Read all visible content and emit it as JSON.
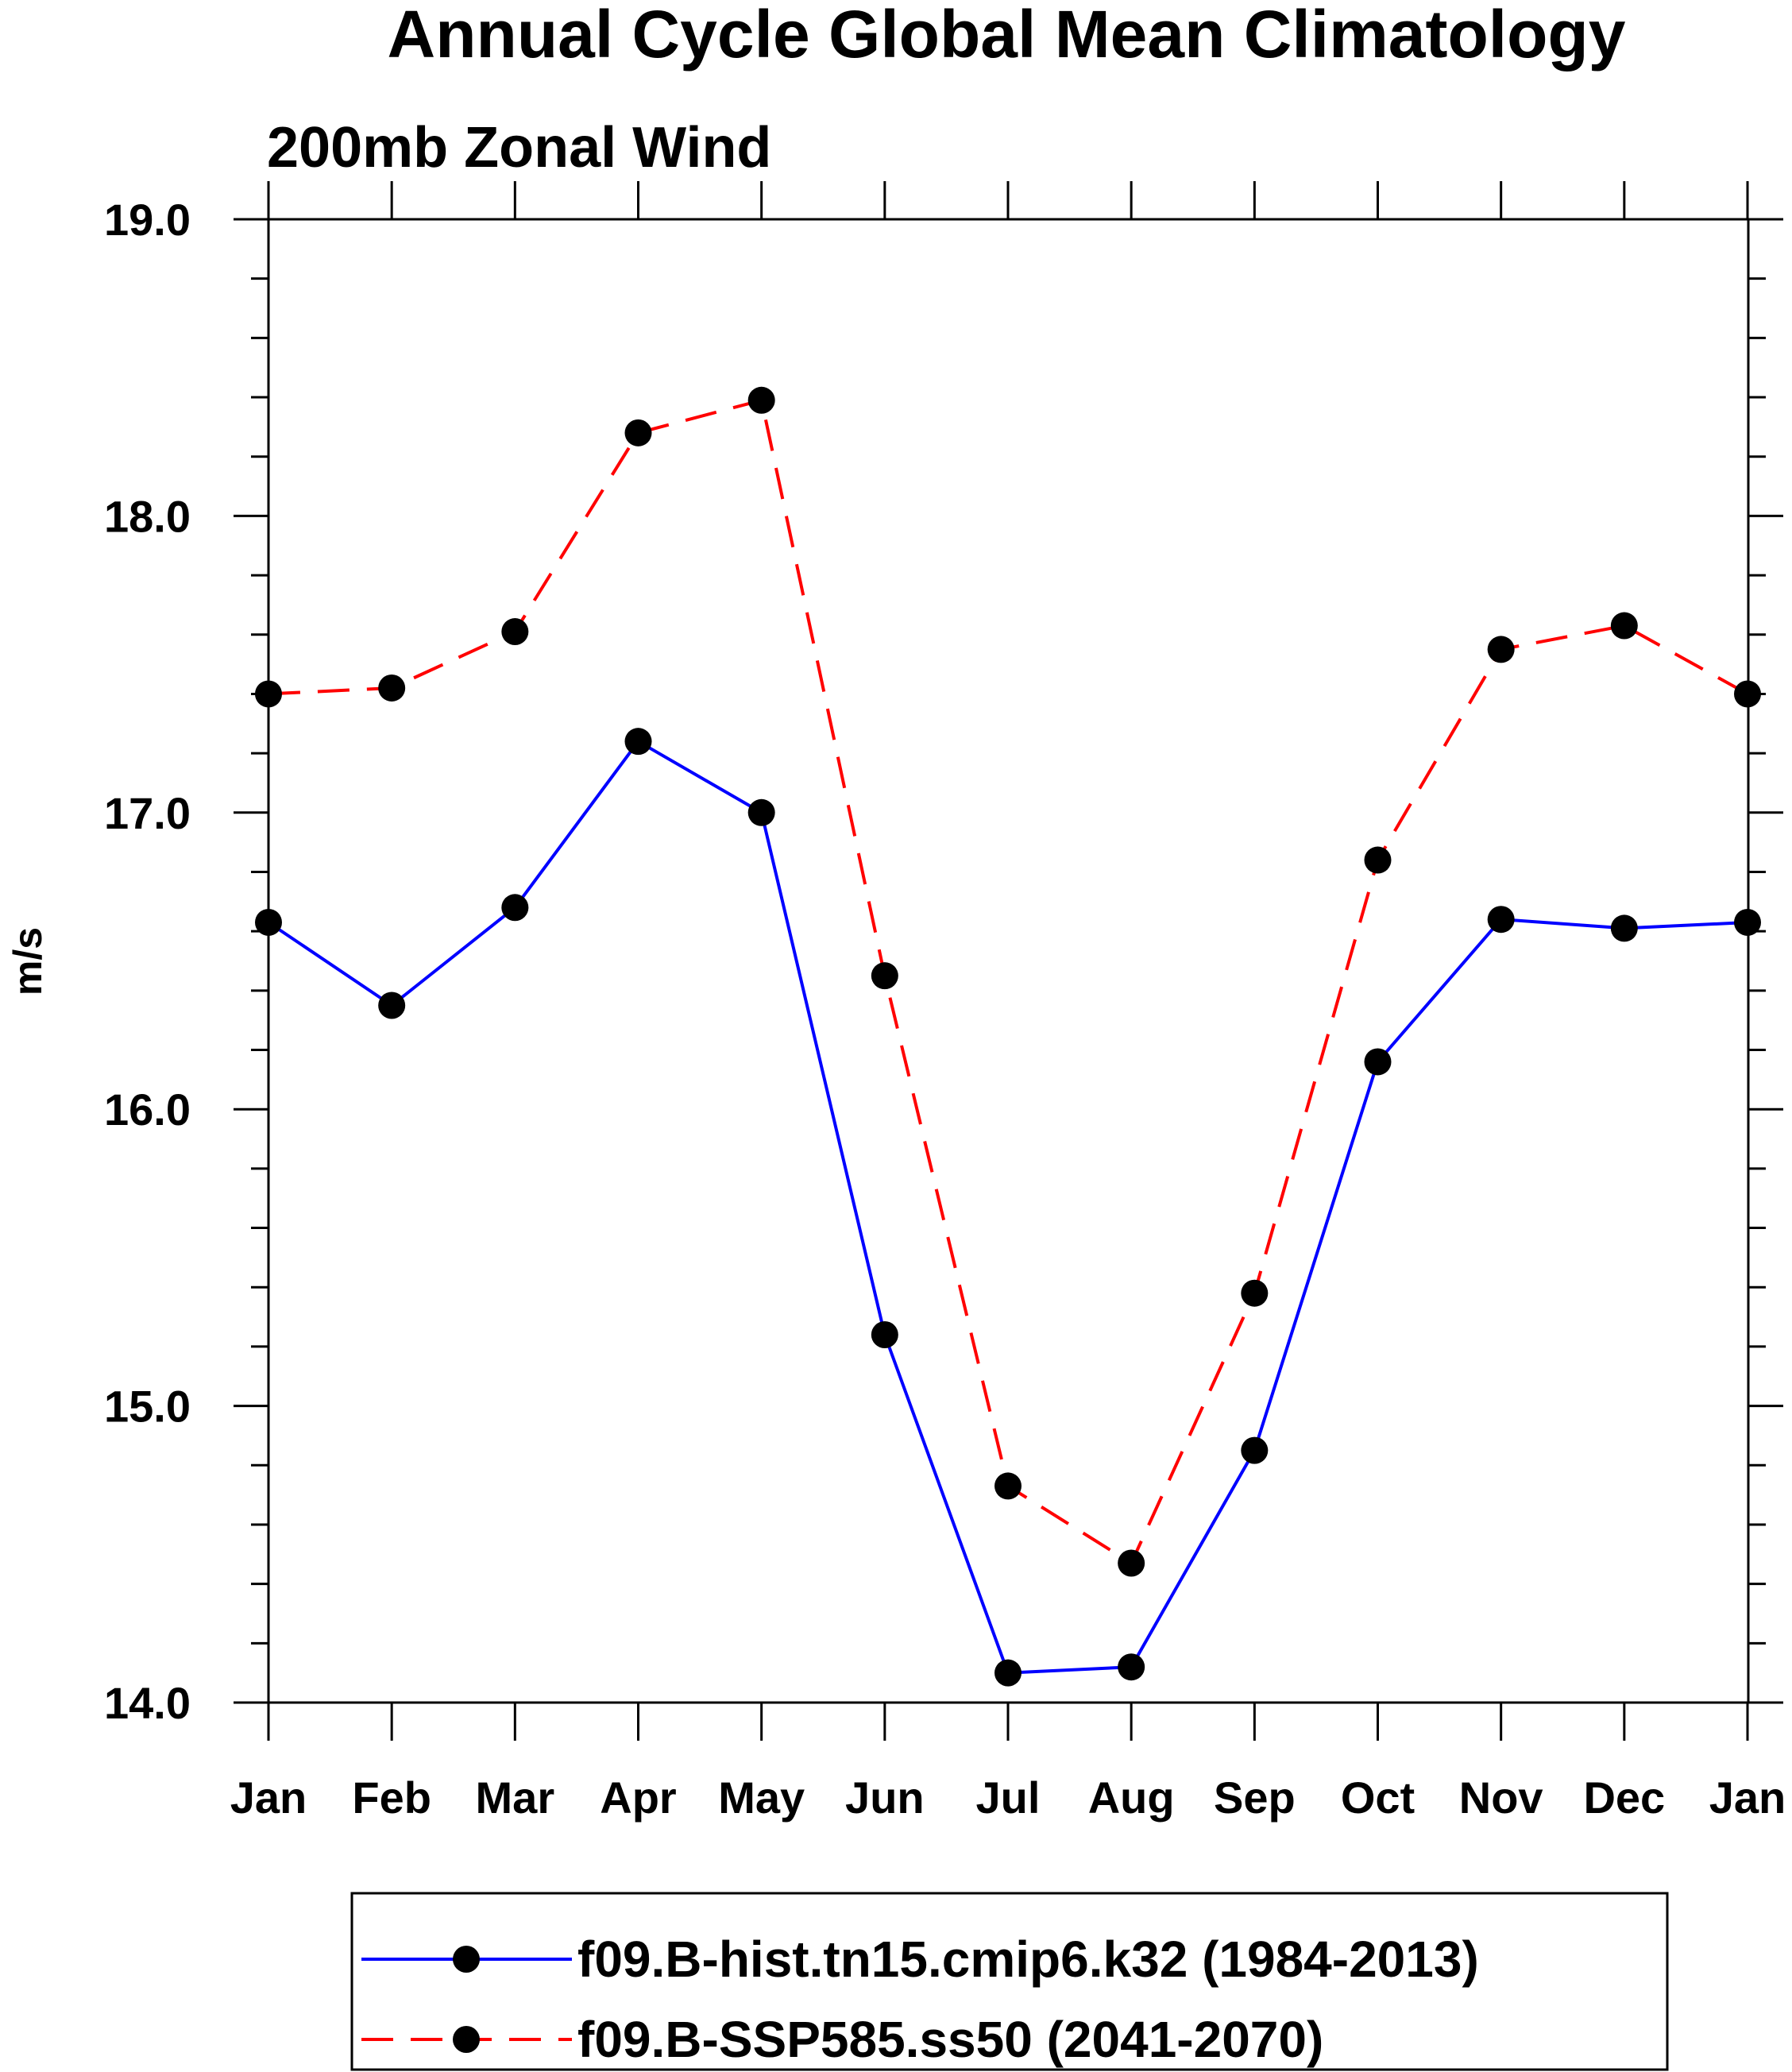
{
  "chart_data": {
    "type": "line",
    "title": "Annual Cycle Global Mean Climatology",
    "subtitle": "200mb Zonal Wind",
    "xlabel": "",
    "ylabel": "m/s",
    "categories": [
      "Jan",
      "Feb",
      "Mar",
      "Apr",
      "May",
      "Jun",
      "Jul",
      "Aug",
      "Sep",
      "Oct",
      "Nov",
      "Dec",
      "Jan"
    ],
    "ylim": [
      14.0,
      19.0
    ],
    "yticks": [
      "14.0",
      "15.0",
      "16.0",
      "17.0",
      "18.0",
      "19.0"
    ],
    "grid": false,
    "legend_position": "bottom",
    "series": [
      {
        "name": "f09.B-hist.tn15.cmip6.k32 (1984-2013)",
        "color": "#0000ff",
        "dash": "solid",
        "marker": "filled-circle",
        "values": [
          16.63,
          16.35,
          16.68,
          17.24,
          17.0,
          15.24,
          14.1,
          14.12,
          14.85,
          16.16,
          16.64,
          16.61,
          16.63
        ]
      },
      {
        "name": "f09.B-SSP585.ss50 (2041-2070)",
        "color": "#ff0000",
        "dash": "dashed",
        "marker": "filled-circle",
        "values": [
          17.4,
          17.42,
          17.61,
          18.28,
          18.39,
          16.45,
          14.73,
          14.47,
          15.38,
          16.84,
          17.55,
          17.63,
          17.4
        ]
      }
    ]
  }
}
